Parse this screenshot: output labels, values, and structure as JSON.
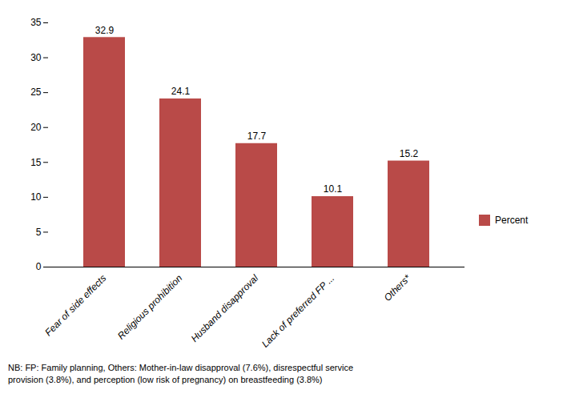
{
  "chart_data": {
    "type": "bar",
    "categories": [
      "Fear of side effects",
      "Religious prohibition",
      "Husband disapproval",
      "Lack of preferred FP ...",
      "Others*"
    ],
    "series": [
      {
        "name": "Percent",
        "color": "#b94a48",
        "values": [
          32.9,
          24.1,
          17.7,
          10.1,
          15.2
        ]
      }
    ],
    "ylim": [
      0,
      35
    ],
    "yticks": [
      0,
      5,
      10,
      15,
      20,
      25,
      30,
      35
    ],
    "grid": false,
    "legend": "right",
    "data_labels": true,
    "annotations": [
      "NB: FP: Family planning, Others: Mother-in-law disapproval (7.6%), disrespectful service",
      "provision (3.8%), and perception (low risk of pregnancy) on breastfeeding (3.8%)"
    ]
  }
}
